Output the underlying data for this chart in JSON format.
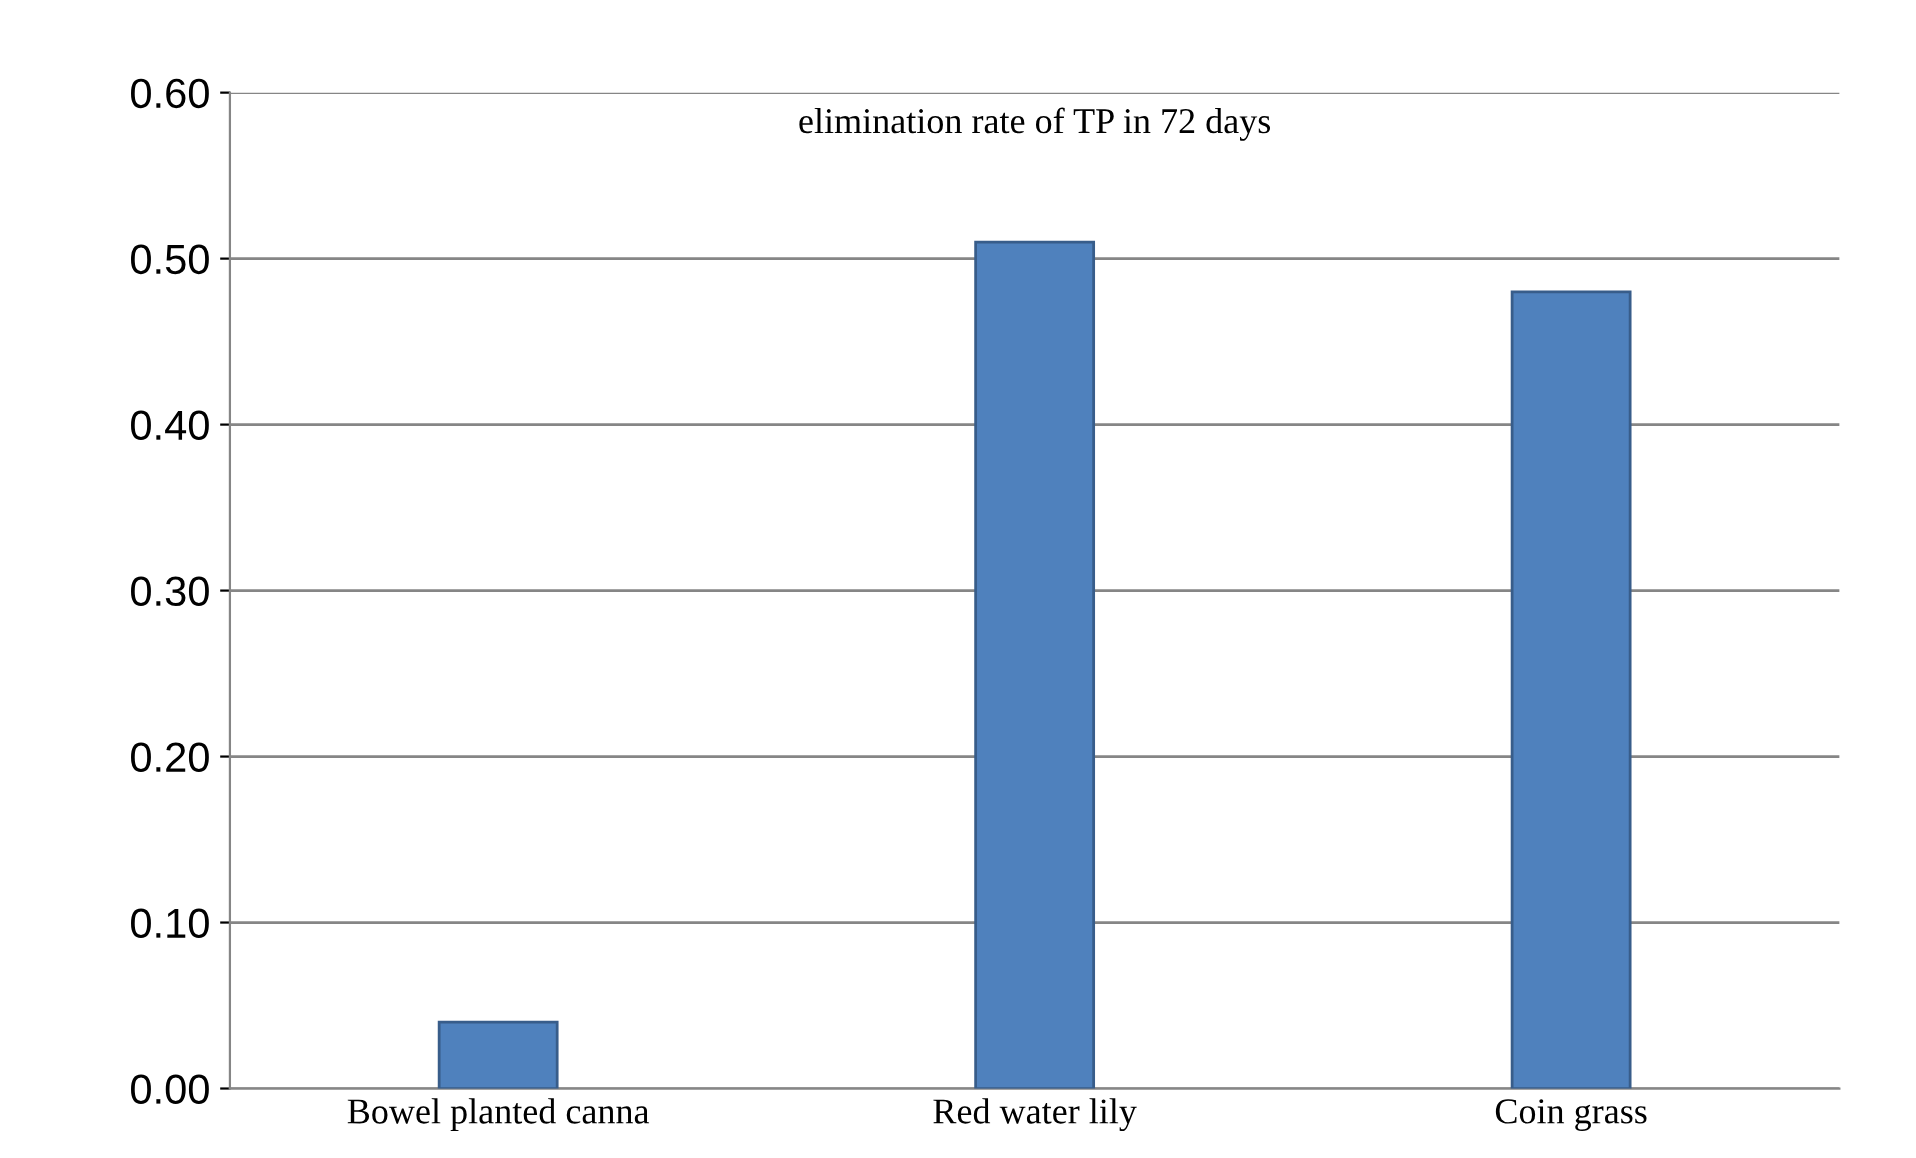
{
  "chart_data": {
    "type": "bar",
    "title": "elimination rate of TP in 72 days",
    "categories": [
      "Bowel planted canna",
      "Red water lily",
      "Coin grass"
    ],
    "values": [
      0.04,
      0.51,
      0.48
    ],
    "color": "#4f81bd",
    "ylim": [
      0,
      0.6
    ],
    "yticks": [
      {
        "value": 0,
        "label": "0.00"
      },
      {
        "value": 0.1,
        "label": "0.10"
      },
      {
        "value": 0.2,
        "label": "0.20"
      },
      {
        "value": 0.3,
        "label": "0.30"
      },
      {
        "value": 0.4,
        "label": "0.40"
      },
      {
        "value": 0.5,
        "label": "0.50"
      },
      {
        "value": 0.6,
        "label": "0.60"
      }
    ],
    "grid": "y"
  }
}
